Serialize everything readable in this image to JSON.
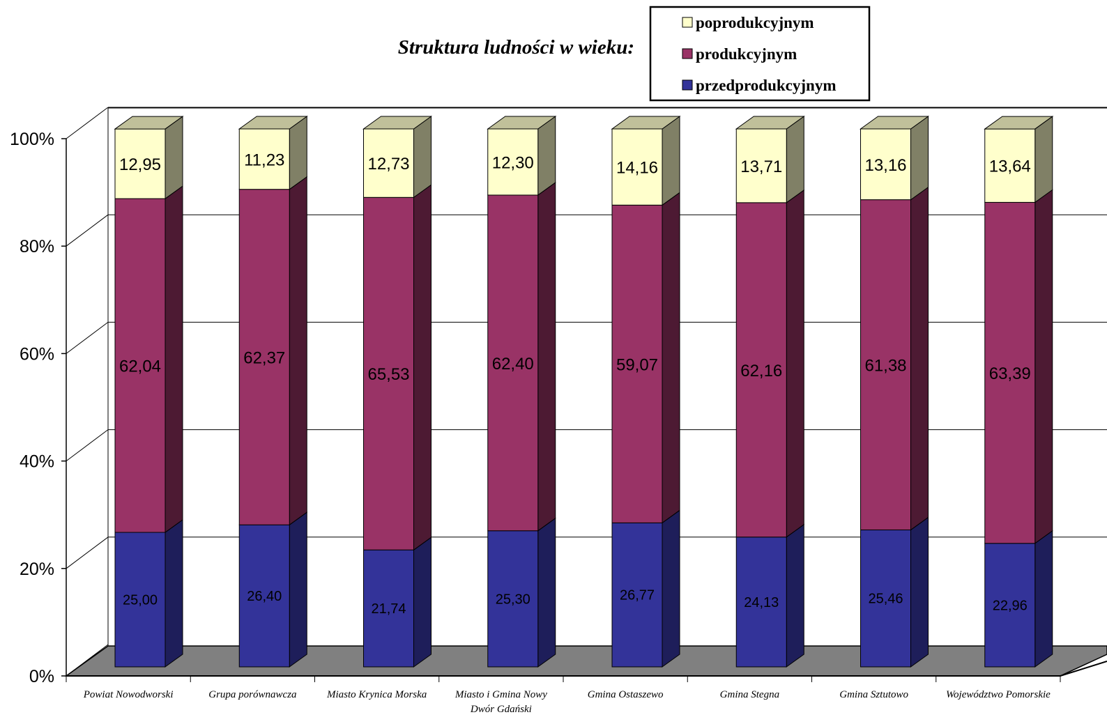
{
  "chart_data": {
    "type": "bar",
    "stacked": true,
    "three_d": true,
    "title": "Struktura ludności w wieku:",
    "categories": [
      "Powiat Nowodworski",
      "Grupa porównawcza",
      "Miasto Krynica Morska",
      "Miasto i Gmina Nowy Dwór Gdański",
      "Gmina Ostaszewo",
      "Gmina Stegna",
      "Gmina Sztutowo",
      "Województwo Pomorskie"
    ],
    "category_lines": [
      [
        "Powiat Nowodworski"
      ],
      [
        "Grupa porównawcza"
      ],
      [
        "Miasto Krynica Morska"
      ],
      [
        "Miasto i Gmina Nowy",
        "Dwór Gdański"
      ],
      [
        "Gmina Ostaszewo"
      ],
      [
        "Gmina Stegna"
      ],
      [
        "Gmina Sztutowo"
      ],
      [
        "Województwo Pomorskie"
      ]
    ],
    "series": [
      {
        "name": "przedprodukcyjnym",
        "values": [
          25.0,
          26.4,
          21.74,
          25.3,
          26.77,
          24.13,
          25.46,
          22.96
        ],
        "labels": [
          "25,00",
          "26,40",
          "21,74",
          "25,30",
          "26,77",
          "24,13",
          "25,46",
          "22,96"
        ],
        "color": "#333399",
        "side_color": "#1e1e5a",
        "top_color": "#2a2a7a"
      },
      {
        "name": "produkcyjnym",
        "values": [
          62.04,
          62.37,
          65.53,
          62.4,
          59.07,
          62.16,
          61.38,
          63.39
        ],
        "labels": [
          "62,04",
          "62,37",
          "65,53",
          "62,40",
          "59,07",
          "62,16",
          "61,38",
          "63,39"
        ],
        "color": "#993366",
        "side_color": "#4d1a33",
        "top_color": "#7a2952"
      },
      {
        "name": "poprodukcyjnym",
        "values": [
          12.95,
          11.23,
          12.73,
          12.3,
          14.16,
          13.71,
          13.16,
          13.64
        ],
        "labels": [
          "12,95",
          "11,23",
          "12,73",
          "12,30",
          "14,16",
          "13,71",
          "13,16",
          "13,64"
        ],
        "color": "#ffffcc",
        "side_color": "#808066",
        "top_color": "#c0c09a"
      }
    ],
    "legend_order": [
      "poprodukcyjnym",
      "produkcyjnym",
      "przedprodukcyjnym"
    ],
    "y_ticks": [
      "0%",
      "20%",
      "40%",
      "60%",
      "80%",
      "100%"
    ],
    "ylim": [
      0,
      100
    ],
    "grid": true,
    "legend_position": "top-right",
    "floor_color": "#808080"
  }
}
